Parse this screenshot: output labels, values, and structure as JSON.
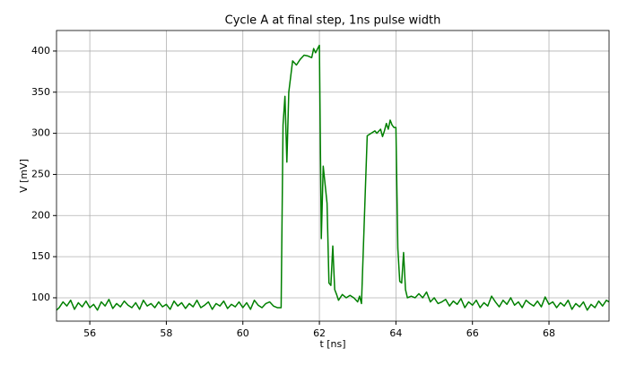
{
  "chart_data": {
    "type": "line",
    "title": "Cycle A at final step, 1ns pulse width",
    "xlabel": "t [ns]",
    "ylabel": "V  [mV]",
    "x": [
      55.13,
      55.2,
      55.3,
      55.4,
      55.5,
      55.6,
      55.7,
      55.8,
      55.9,
      56.0,
      56.1,
      56.2,
      56.3,
      56.4,
      56.5,
      56.6,
      56.7,
      56.8,
      56.9,
      57.0,
      57.1,
      57.2,
      57.3,
      57.4,
      57.5,
      57.6,
      57.7,
      57.8,
      57.9,
      58.0,
      58.1,
      58.2,
      58.3,
      58.4,
      58.5,
      58.6,
      58.7,
      58.8,
      58.9,
      59.0,
      59.1,
      59.2,
      59.3,
      59.4,
      59.5,
      59.6,
      59.7,
      59.8,
      59.9,
      60.0,
      60.1,
      60.2,
      60.3,
      60.4,
      60.5,
      60.6,
      60.7,
      60.8,
      60.9,
      61.0,
      61.05,
      61.1,
      61.15,
      61.2,
      61.3,
      61.4,
      61.5,
      61.6,
      61.7,
      61.8,
      61.85,
      61.9,
      62.0,
      62.05,
      62.1,
      62.2,
      62.25,
      62.3,
      62.35,
      62.4,
      62.45,
      62.5,
      62.6,
      62.7,
      62.8,
      62.9,
      63.0,
      63.05,
      63.1,
      63.2,
      63.25,
      63.35,
      63.45,
      63.5,
      63.6,
      63.65,
      63.7,
      63.75,
      63.8,
      63.85,
      63.9,
      63.95,
      64.0,
      64.05,
      64.1,
      64.15,
      64.2,
      64.25,
      64.3,
      64.4,
      64.5,
      64.6,
      64.7,
      64.8,
      64.9,
      65.0,
      65.1,
      65.2,
      65.3,
      65.4,
      65.5,
      65.6,
      65.7,
      65.8,
      65.9,
      66.0,
      66.1,
      66.2,
      66.3,
      66.4,
      66.5,
      66.6,
      66.7,
      66.8,
      66.9,
      67.0,
      67.1,
      67.2,
      67.3,
      67.4,
      67.5,
      67.6,
      67.7,
      67.8,
      67.9,
      68.0,
      68.1,
      68.2,
      68.3,
      68.4,
      68.5,
      68.6,
      68.7,
      68.8,
      68.9,
      69.0,
      69.1,
      69.2,
      69.3,
      69.4,
      69.5,
      69.57
    ],
    "values": [
      85,
      88,
      95,
      90,
      97,
      86,
      94,
      89,
      96,
      88,
      92,
      85,
      95,
      90,
      98,
      87,
      93,
      89,
      96,
      91,
      88,
      94,
      86,
      97,
      90,
      93,
      88,
      95,
      89,
      92,
      86,
      96,
      90,
      94,
      87,
      93,
      89,
      97,
      88,
      91,
      95,
      86,
      93,
      90,
      96,
      87,
      92,
      89,
      95,
      88,
      94,
      86,
      97,
      91,
      88,
      93,
      95,
      90,
      88,
      88,
      310,
      345,
      265,
      350,
      388,
      383,
      390,
      395,
      394,
      392,
      403,
      398,
      407,
      172,
      260,
      215,
      118,
      115,
      163,
      110,
      104,
      97,
      104,
      100,
      103,
      100,
      95,
      102,
      93,
      230,
      297,
      300,
      303,
      300,
      305,
      296,
      303,
      312,
      305,
      316,
      310,
      307,
      307,
      160,
      120,
      118,
      155,
      110,
      100,
      102,
      100,
      105,
      100,
      107,
      95,
      100,
      93,
      95,
      98,
      90,
      96,
      92,
      99,
      88,
      95,
      91,
      97,
      88,
      94,
      90,
      102,
      95,
      89,
      97,
      92,
      100,
      91,
      95,
      88,
      97,
      93,
      90,
      96,
      89,
      101,
      92,
      95,
      88,
      94,
      90,
      97,
      86,
      93,
      89,
      95,
      85,
      92,
      88,
      96,
      90,
      97,
      95
    ],
    "color": "#008000",
    "xlim": [
      55.13,
      69.57
    ],
    "ylim": [
      71.6,
      425
    ],
    "xticks": [
      56,
      58,
      60,
      62,
      64,
      66,
      68
    ],
    "yticks": [
      100,
      150,
      200,
      250,
      300,
      350,
      400
    ],
    "grid": true
  }
}
